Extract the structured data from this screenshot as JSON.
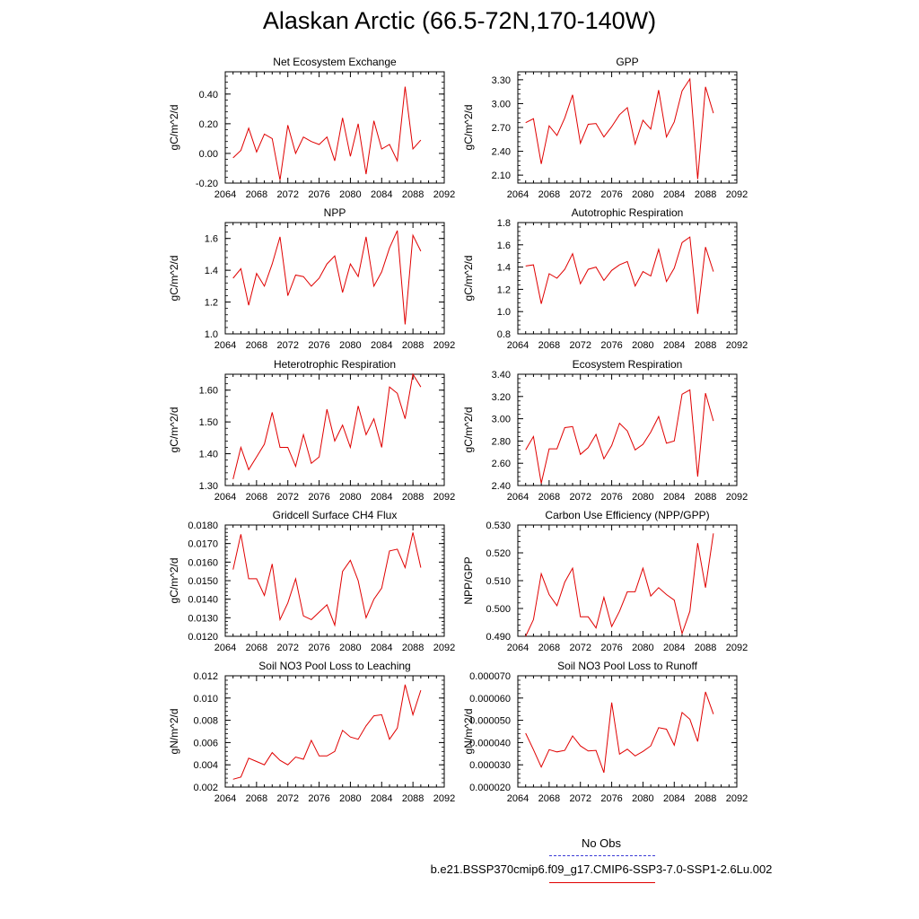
{
  "page_title": "Alaskan Arctic (66.5-72N,170-140W)",
  "legend": {
    "obs_label": "No Obs",
    "case_label": "b.e21.BSSP370cmip6.f09_g17.CMIP6-SSP3-7.0-SSP1-2.6Lu.002",
    "obs_color": "#3b3bd6",
    "case_color": "#e00000"
  },
  "chart_data": [
    {
      "type": "line",
      "title": "Net Ecosystem Exchange",
      "ylabel": "gC/m^2/d",
      "xlim": [
        2064,
        2092
      ],
      "xticks": [
        2064,
        2068,
        2072,
        2076,
        2080,
        2084,
        2088,
        2092
      ],
      "ylim": [
        -0.2,
        0.55
      ],
      "yticks": [
        -0.2,
        0.0,
        0.2,
        0.4
      ],
      "ytick_labels": [
        "-0.20",
        "0.00",
        "0.20",
        "0.40"
      ],
      "x": [
        2065,
        2066,
        2067,
        2068,
        2069,
        2070,
        2071,
        2072,
        2073,
        2074,
        2075,
        2076,
        2077,
        2078,
        2079,
        2080,
        2081,
        2082,
        2083,
        2084,
        2085,
        2086,
        2087,
        2088,
        2089
      ],
      "y": [
        -0.03,
        0.02,
        0.17,
        0.01,
        0.13,
        0.1,
        -0.18,
        0.19,
        0.0,
        0.11,
        0.08,
        0.06,
        0.11,
        -0.05,
        0.24,
        -0.02,
        0.2,
        -0.14,
        0.22,
        0.03,
        0.06,
        -0.05,
        0.45,
        0.03,
        0.09
      ],
      "color": "#e00000"
    },
    {
      "type": "line",
      "title": "GPP",
      "ylabel": "gC/m^2/d",
      "xlim": [
        2064,
        2092
      ],
      "xticks": [
        2064,
        2068,
        2072,
        2076,
        2080,
        2084,
        2088,
        2092
      ],
      "ylim": [
        2.0,
        3.4
      ],
      "yticks": [
        2.1,
        2.4,
        2.7,
        3.0,
        3.3
      ],
      "ytick_labels": [
        "2.10",
        "2.40",
        "2.70",
        "3.00",
        "3.30"
      ],
      "x": [
        2065,
        2066,
        2067,
        2068,
        2069,
        2070,
        2071,
        2072,
        2073,
        2074,
        2075,
        2076,
        2077,
        2078,
        2079,
        2080,
        2081,
        2082,
        2083,
        2084,
        2085,
        2086,
        2087,
        2088,
        2089
      ],
      "y": [
        2.76,
        2.81,
        2.24,
        2.72,
        2.6,
        2.82,
        3.11,
        2.5,
        2.74,
        2.75,
        2.58,
        2.71,
        2.86,
        2.95,
        2.49,
        2.79,
        2.68,
        3.17,
        2.58,
        2.77,
        3.16,
        3.31,
        2.05,
        3.21,
        2.88
      ],
      "color": "#e00000"
    },
    {
      "type": "line",
      "title": "NPP",
      "ylabel": "gC/m^2/d",
      "xlim": [
        2064,
        2092
      ],
      "xticks": [
        2064,
        2068,
        2072,
        2076,
        2080,
        2084,
        2088,
        2092
      ],
      "ylim": [
        1.0,
        1.7
      ],
      "yticks": [
        1.0,
        1.2,
        1.4,
        1.6
      ],
      "ytick_labels": [
        "1.0",
        "1.2",
        "1.4",
        "1.6"
      ],
      "x": [
        2065,
        2066,
        2067,
        2068,
        2069,
        2070,
        2071,
        2072,
        2073,
        2074,
        2075,
        2076,
        2077,
        2078,
        2079,
        2080,
        2081,
        2082,
        2083,
        2084,
        2085,
        2086,
        2087,
        2088,
        2089
      ],
      "y": [
        1.35,
        1.41,
        1.18,
        1.38,
        1.3,
        1.44,
        1.61,
        1.24,
        1.37,
        1.36,
        1.3,
        1.35,
        1.44,
        1.49,
        1.26,
        1.44,
        1.36,
        1.61,
        1.3,
        1.39,
        1.54,
        1.65,
        1.06,
        1.62,
        1.52
      ],
      "color": "#e00000"
    },
    {
      "type": "line",
      "title": "Autotrophic Respiration",
      "ylabel": "gC/m^2/d",
      "xlim": [
        2064,
        2092
      ],
      "xticks": [
        2064,
        2068,
        2072,
        2076,
        2080,
        2084,
        2088,
        2092
      ],
      "ylim": [
        0.8,
        1.8
      ],
      "yticks": [
        0.8,
        1.0,
        1.2,
        1.4,
        1.6,
        1.8
      ],
      "ytick_labels": [
        "0.8",
        "1.0",
        "1.2",
        "1.4",
        "1.6",
        "1.8"
      ],
      "x": [
        2065,
        2066,
        2067,
        2068,
        2069,
        2070,
        2071,
        2072,
        2073,
        2074,
        2075,
        2076,
        2077,
        2078,
        2079,
        2080,
        2081,
        2082,
        2083,
        2084,
        2085,
        2086,
        2087,
        2088,
        2089
      ],
      "y": [
        1.41,
        1.42,
        1.07,
        1.34,
        1.3,
        1.38,
        1.52,
        1.25,
        1.38,
        1.4,
        1.28,
        1.37,
        1.42,
        1.45,
        1.23,
        1.36,
        1.32,
        1.56,
        1.27,
        1.39,
        1.62,
        1.67,
        0.98,
        1.58,
        1.36
      ],
      "color": "#e00000"
    },
    {
      "type": "line",
      "title": "Heterotrophic Respiration",
      "ylabel": "gC/m^2/d",
      "xlim": [
        2064,
        2092
      ],
      "xticks": [
        2064,
        2068,
        2072,
        2076,
        2080,
        2084,
        2088,
        2092
      ],
      "ylim": [
        1.3,
        1.65
      ],
      "yticks": [
        1.3,
        1.4,
        1.5,
        1.6
      ],
      "ytick_labels": [
        "1.30",
        "1.40",
        "1.50",
        "1.60"
      ],
      "x": [
        2065,
        2066,
        2067,
        2068,
        2069,
        2070,
        2071,
        2072,
        2073,
        2074,
        2075,
        2076,
        2077,
        2078,
        2079,
        2080,
        2081,
        2082,
        2083,
        2084,
        2085,
        2086,
        2087,
        2088,
        2089
      ],
      "y": [
        1.32,
        1.42,
        1.35,
        1.39,
        1.43,
        1.53,
        1.42,
        1.42,
        1.36,
        1.46,
        1.37,
        1.39,
        1.54,
        1.44,
        1.49,
        1.42,
        1.55,
        1.46,
        1.51,
        1.42,
        1.61,
        1.59,
        1.51,
        1.65,
        1.61
      ],
      "color": "#e00000"
    },
    {
      "type": "line",
      "title": "Ecosystem Respiration",
      "ylabel": "gC/m^2/d",
      "xlim": [
        2064,
        2092
      ],
      "xticks": [
        2064,
        2068,
        2072,
        2076,
        2080,
        2084,
        2088,
        2092
      ],
      "ylim": [
        2.4,
        3.4
      ],
      "yticks": [
        2.4,
        2.6,
        2.8,
        3.0,
        3.2,
        3.4
      ],
      "ytick_labels": [
        "2.40",
        "2.60",
        "2.80",
        "3.00",
        "3.20",
        "3.40"
      ],
      "x": [
        2065,
        2066,
        2067,
        2068,
        2069,
        2070,
        2071,
        2072,
        2073,
        2074,
        2075,
        2076,
        2077,
        2078,
        2079,
        2080,
        2081,
        2082,
        2083,
        2084,
        2085,
        2086,
        2087,
        2088,
        2089
      ],
      "y": [
        2.72,
        2.84,
        2.42,
        2.73,
        2.73,
        2.92,
        2.93,
        2.68,
        2.74,
        2.86,
        2.64,
        2.76,
        2.96,
        2.89,
        2.72,
        2.77,
        2.88,
        3.02,
        2.78,
        2.8,
        3.22,
        3.26,
        2.48,
        3.23,
        2.98
      ],
      "color": "#e00000"
    },
    {
      "type": "line",
      "title": "Gridcell Surface CH4 Flux",
      "ylabel": "gC/m^2/d",
      "xlim": [
        2064,
        2092
      ],
      "xticks": [
        2064,
        2068,
        2072,
        2076,
        2080,
        2084,
        2088,
        2092
      ],
      "ylim": [
        0.012,
        0.018
      ],
      "yticks": [
        0.012,
        0.013,
        0.014,
        0.015,
        0.016,
        0.017,
        0.018
      ],
      "ytick_labels": [
        "0.0120",
        "0.0130",
        "0.0140",
        "0.0150",
        "0.0160",
        "0.0170",
        "0.0180"
      ],
      "x": [
        2065,
        2066,
        2067,
        2068,
        2069,
        2070,
        2071,
        2072,
        2073,
        2074,
        2075,
        2076,
        2077,
        2078,
        2079,
        2080,
        2081,
        2082,
        2083,
        2084,
        2085,
        2086,
        2087,
        2088,
        2089
      ],
      "y": [
        0.0156,
        0.0175,
        0.0151,
        0.0151,
        0.0142,
        0.0159,
        0.0129,
        0.0138,
        0.0151,
        0.0131,
        0.0129,
        0.0133,
        0.0137,
        0.0126,
        0.0155,
        0.0161,
        0.015,
        0.013,
        0.014,
        0.0146,
        0.0166,
        0.0167,
        0.0157,
        0.0176,
        0.0157
      ],
      "color": "#e00000"
    },
    {
      "type": "line",
      "title": "Carbon Use Efficiency (NPP/GPP)",
      "ylabel": "NPP/GPP",
      "xlim": [
        2064,
        2092
      ],
      "xticks": [
        2064,
        2068,
        2072,
        2076,
        2080,
        2084,
        2088,
        2092
      ],
      "ylim": [
        0.49,
        0.53
      ],
      "yticks": [
        0.49,
        0.5,
        0.51,
        0.52,
        0.53
      ],
      "ytick_labels": [
        "0.490",
        "0.500",
        "0.510",
        "0.520",
        "0.530"
      ],
      "x": [
        2065,
        2066,
        2067,
        2068,
        2069,
        2070,
        2071,
        2072,
        2073,
        2074,
        2075,
        2076,
        2077,
        2078,
        2079,
        2080,
        2081,
        2082,
        2083,
        2084,
        2085,
        2086,
        2087,
        2088,
        2089
      ],
      "y": [
        0.49,
        0.496,
        0.5125,
        0.505,
        0.501,
        0.5095,
        0.5145,
        0.497,
        0.497,
        0.493,
        0.504,
        0.4935,
        0.499,
        0.506,
        0.506,
        0.5145,
        0.5045,
        0.5075,
        0.505,
        0.503,
        0.491,
        0.499,
        0.5235,
        0.5075,
        0.527
      ],
      "color": "#e00000"
    },
    {
      "type": "line",
      "title": "Soil NO3 Pool Loss to Leaching",
      "ylabel": "gN/m^2/d",
      "xlim": [
        2064,
        2092
      ],
      "xticks": [
        2064,
        2068,
        2072,
        2076,
        2080,
        2084,
        2088,
        2092
      ],
      "ylim": [
        0.002,
        0.012
      ],
      "yticks": [
        0.002,
        0.004,
        0.006,
        0.008,
        0.01,
        0.012
      ],
      "ytick_labels": [
        "0.002",
        "0.004",
        "0.006",
        "0.008",
        "0.010",
        "0.012"
      ],
      "x": [
        2065,
        2066,
        2067,
        2068,
        2069,
        2070,
        2071,
        2072,
        2073,
        2074,
        2075,
        2076,
        2077,
        2078,
        2079,
        2080,
        2081,
        2082,
        2083,
        2084,
        2085,
        2086,
        2087,
        2088,
        2089
      ],
      "y": [
        0.0027,
        0.0029,
        0.0046,
        0.0043,
        0.004,
        0.0051,
        0.0044,
        0.004,
        0.0047,
        0.0045,
        0.0062,
        0.0048,
        0.0048,
        0.0052,
        0.0071,
        0.0065,
        0.0063,
        0.0075,
        0.0084,
        0.0085,
        0.0063,
        0.0073,
        0.0112,
        0.0085,
        0.0107
      ],
      "color": "#e00000"
    },
    {
      "type": "line",
      "title": "Soil NO3 Pool Loss to Runoff",
      "ylabel": "gN/m^2/d",
      "xlim": [
        2064,
        2092
      ],
      "xticks": [
        2064,
        2068,
        2072,
        2076,
        2080,
        2084,
        2088,
        2092
      ],
      "ylim": [
        2e-05,
        7e-05
      ],
      "yticks": [
        2e-05,
        3e-05,
        4e-05,
        5e-05,
        6e-05,
        7e-05
      ],
      "ytick_labels": [
        "0.000020",
        "0.000030",
        "0.000040",
        "0.000050",
        "0.000060",
        "0.000070"
      ],
      "x": [
        2065,
        2066,
        2067,
        2068,
        2069,
        2070,
        2071,
        2072,
        2073,
        2074,
        2075,
        2076,
        2077,
        2078,
        2079,
        2080,
        2081,
        2082,
        2083,
        2084,
        2085,
        2086,
        2087,
        2088,
        2089
      ],
      "y": [
        4.42e-05,
        3.68e-05,
        2.9e-05,
        3.68e-05,
        3.58e-05,
        3.65e-05,
        4.3e-05,
        3.85e-05,
        3.62e-05,
        3.65e-05,
        2.65e-05,
        5.8e-05,
        3.48e-05,
        3.7e-05,
        3.4e-05,
        3.6e-05,
        3.85e-05,
        4.67e-05,
        4.6e-05,
        3.88e-05,
        5.35e-05,
        5.05e-05,
        4.05e-05,
        6.28e-05,
        5.28e-05
      ],
      "color": "#e00000"
    }
  ]
}
